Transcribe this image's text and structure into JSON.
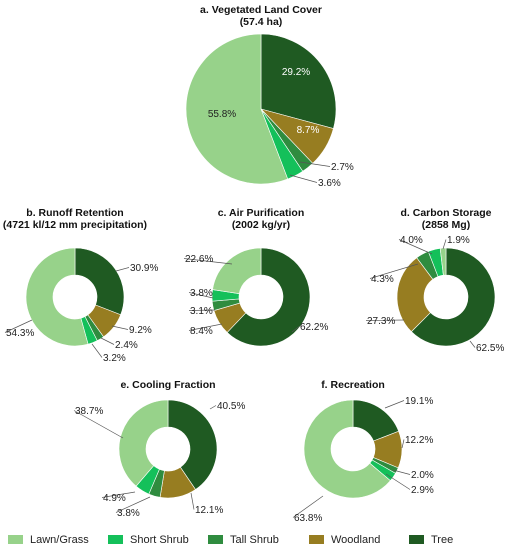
{
  "colors": {
    "Lawn/Grass": "#97d28a",
    "Short Shrub": "#14c05a",
    "Tall Shrub": "#2f8c3f",
    "Woodland": "#977d21",
    "Tree": "#1f5a22"
  },
  "legend": {
    "items": [
      "Lawn/Grass",
      "Short Shrub",
      "Tall Shrub",
      "Woodland",
      "Tree"
    ]
  },
  "chart_data": [
    {
      "type": "pie",
      "title": "a.  Vegetated Land Cover",
      "subtitle": "(57.4 ha)",
      "categories": [
        "Tree",
        "Woodland",
        "Tall Shrub",
        "Short Shrub",
        "Lawn/Grass"
      ],
      "values": [
        29.2,
        8.7,
        2.7,
        3.6,
        55.8
      ],
      "labels": [
        "29.2%",
        "8.7%",
        "2.7%",
        "3.6%",
        "55.8%"
      ]
    },
    {
      "type": "pie",
      "title": "b.  Runoff Retention",
      "subtitle": "(4721 kl/12 mm precipitation)",
      "categories": [
        "Tree",
        "Woodland",
        "Tall Shrub",
        "Short Shrub",
        "Lawn/Grass"
      ],
      "values": [
        30.9,
        9.2,
        2.4,
        3.2,
        54.3
      ],
      "labels": [
        "30.9%",
        "9.2%",
        "2.4%",
        "3.2%",
        "54.3%"
      ]
    },
    {
      "type": "pie",
      "title": "c.  Air Purification",
      "subtitle": "(2002 kg/yr)",
      "categories": [
        "Tree",
        "Woodland",
        "Tall Shrub",
        "Short Shrub",
        "Lawn/Grass"
      ],
      "values": [
        62.2,
        8.4,
        3.1,
        3.8,
        22.6
      ],
      "labels": [
        "62.2%",
        "8.4%",
        "3.1%",
        "3.8%",
        "22.6%"
      ]
    },
    {
      "type": "pie",
      "title": "d.  Carbon Storage",
      "subtitle": "(2858 Mg)",
      "categories": [
        "Tree",
        "Woodland",
        "Tall Shrub",
        "Short Shrub",
        "Lawn/Grass"
      ],
      "values": [
        62.5,
        27.3,
        4.3,
        4.0,
        1.9
      ],
      "labels": [
        "62.5%",
        "27.3%",
        "4.3%",
        "4.0%",
        "1.9%"
      ]
    },
    {
      "type": "pie",
      "title": "e.  Cooling Fraction",
      "subtitle": "",
      "categories": [
        "Tree",
        "Woodland",
        "Tall Shrub",
        "Short Shrub",
        "Lawn/Grass"
      ],
      "values": [
        40.5,
        12.1,
        3.8,
        4.9,
        38.7
      ],
      "labels": [
        "40.5%",
        "12.1%",
        "3.8%",
        "4.9%",
        "38.7%"
      ]
    },
    {
      "type": "pie",
      "title": "f.  Recreation",
      "subtitle": "",
      "categories": [
        "Tree",
        "Woodland",
        "Tall Shrub",
        "Short Shrub",
        "Lawn/Grass"
      ],
      "values": [
        19.1,
        12.2,
        2.0,
        2.9,
        63.8
      ],
      "labels": [
        "19.1%",
        "12.2%",
        "2.0%",
        "2.9%",
        "63.8%"
      ]
    }
  ]
}
